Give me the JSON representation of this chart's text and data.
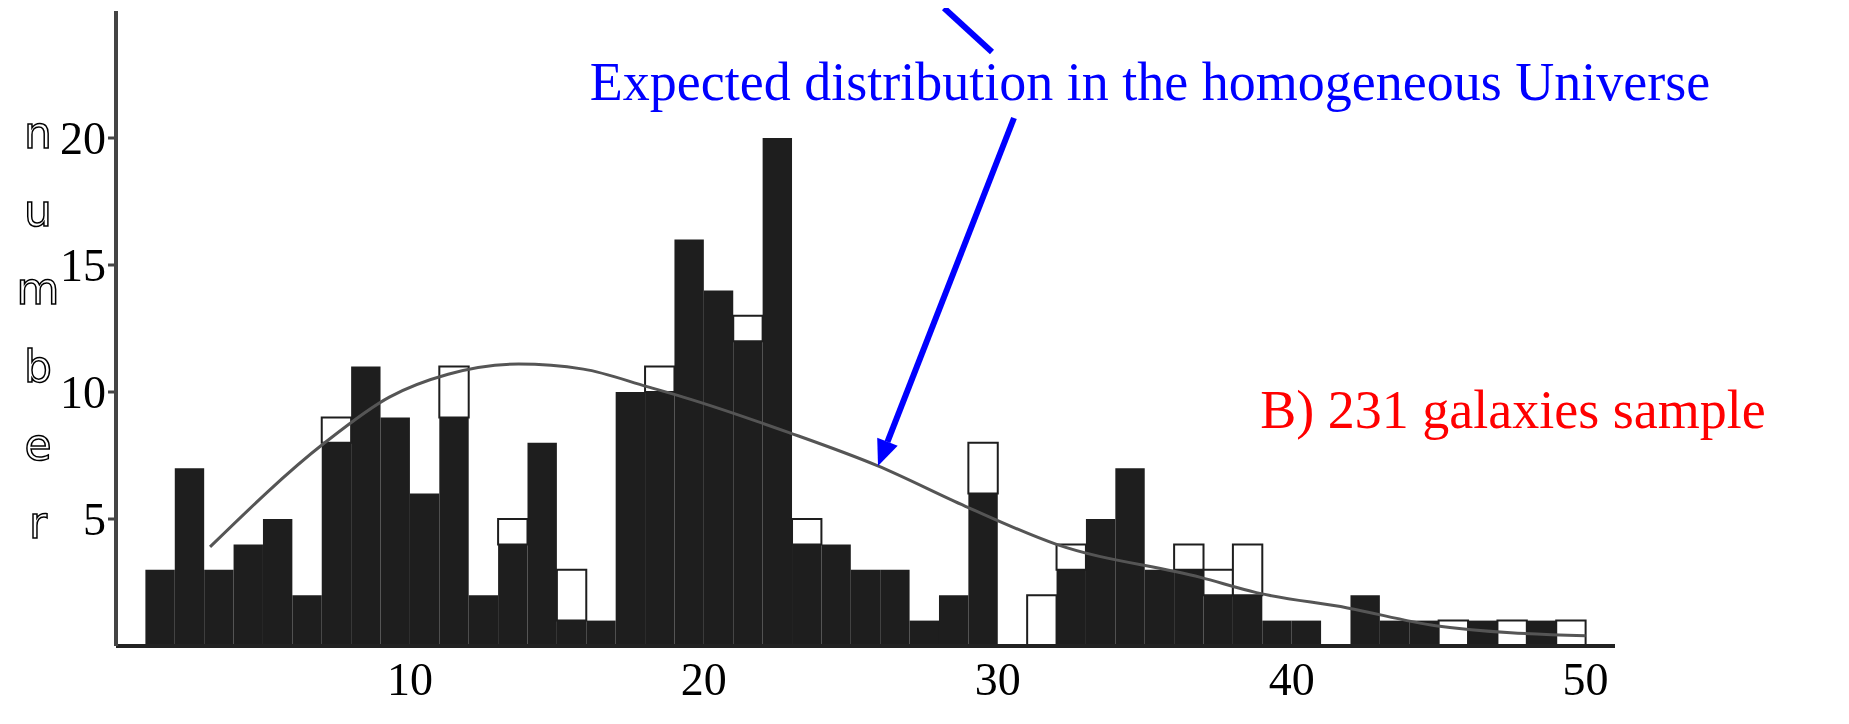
{
  "chart_data": {
    "type": "bar",
    "ylabel": "number",
    "x": [
      1.5,
      2.5,
      3.5,
      4.5,
      5.5,
      6.5,
      7.5,
      8.5,
      9.5,
      10.5,
      11.5,
      12.5,
      13.5,
      14.5,
      15.5,
      16.5,
      17.5,
      18.5,
      19.5,
      20.5,
      21.5,
      22.5,
      23.5,
      24.5,
      25.5,
      26.5,
      27.5,
      28.5,
      29.5,
      30.5,
      31.5,
      32.5,
      33.5,
      34.5,
      35.5,
      36.5,
      37.5,
      38.5,
      39.5,
      40.5,
      41.5,
      42.5,
      43.5,
      44.5,
      45.5,
      46.5,
      47.5,
      48.5,
      49.5
    ],
    "stacked": true,
    "series": [
      {
        "color": "#1e1e1e",
        "values": [
          3,
          7,
          3,
          4,
          5,
          2,
          8,
          11,
          9,
          6,
          9,
          2,
          4,
          8,
          1,
          1,
          10,
          10,
          16,
          14,
          12,
          20,
          4,
          4,
          3,
          3,
          1,
          2,
          6,
          0,
          0,
          3,
          5,
          7,
          3,
          3,
          2,
          2,
          1,
          1,
          0,
          2,
          1,
          1,
          0,
          1,
          0,
          1,
          0
        ]
      },
      {
        "color": "#ffffff",
        "values": [
          0,
          0,
          0,
          0,
          0,
          0,
          1,
          0,
          0,
          0,
          2,
          0,
          1,
          0,
          2,
          0,
          0,
          1,
          0,
          0,
          1,
          0,
          1,
          0,
          0,
          0,
          0,
          0,
          2,
          0,
          2,
          1,
          0,
          0,
          0,
          1,
          1,
          2,
          0,
          0,
          0,
          0,
          0,
          0,
          1,
          0,
          1,
          0,
          1
        ]
      },
      {
        "type": "line",
        "color": "#555555",
        "x": [
          3.2,
          7.1,
          9.3,
          11.3,
          13.7,
          15.9,
          18.1,
          19.3,
          22.9,
          25.9,
          28.9,
          32.0,
          36.9,
          38.8,
          41.9,
          44.9,
          50.0
        ],
        "values": [
          3.9,
          8.0,
          9.8,
          10.7,
          11.1,
          10.9,
          10.2,
          9.8,
          8.4,
          7.1,
          5.5,
          4.0,
          2.7,
          2.1,
          1.5,
          0.8,
          0.4
        ]
      }
    ],
    "xlim": [
      0,
      51
    ],
    "xticks": [
      10,
      20,
      30,
      40,
      50
    ],
    "ylim": [
      0,
      25
    ],
    "yticks": [
      5,
      10,
      15,
      20
    ],
    "annotations": [
      "Expected distribution in the homogeneous Universe",
      "B) 231 galaxies sample"
    ]
  }
}
